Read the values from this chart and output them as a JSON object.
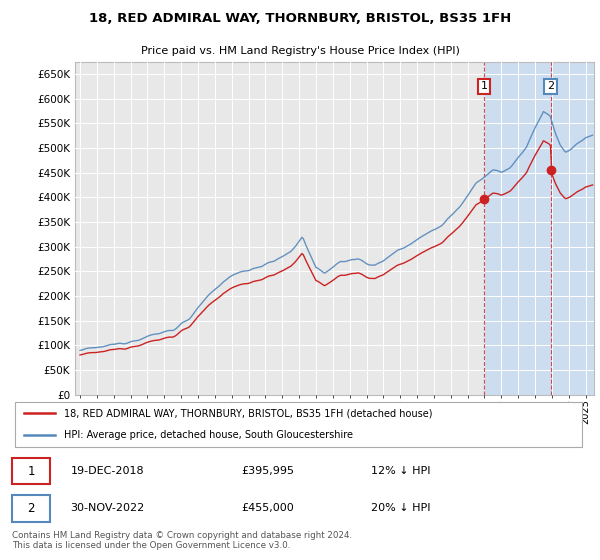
{
  "title": "18, RED ADMIRAL WAY, THORNBURY, BRISTOL, BS35 1FH",
  "subtitle": "Price paid vs. HM Land Registry's House Price Index (HPI)",
  "ytick_values": [
    0,
    50000,
    100000,
    150000,
    200000,
    250000,
    300000,
    350000,
    400000,
    450000,
    500000,
    550000,
    600000,
    650000
  ],
  "ylim": [
    0,
    675000
  ],
  "hpi_color": "#5588bb",
  "price_color": "#cc2222",
  "marker1_color": "#cc2222",
  "marker2_color": "#5588bb",
  "legend_label1": "18, RED ADMIRAL WAY, THORNBURY, BRISTOL, BS35 1FH (detached house)",
  "legend_label2": "HPI: Average price, detached house, South Gloucestershire",
  "annotation1_date": "19-DEC-2018",
  "annotation1_price": "£395,995",
  "annotation1_pct": "12% ↓ HPI",
  "annotation2_date": "30-NOV-2022",
  "annotation2_price": "£455,000",
  "annotation2_pct": "20% ↓ HPI",
  "footer": "Contains HM Land Registry data © Crown copyright and database right 2024.\nThis data is licensed under the Open Government Licence v3.0.",
  "plot_bg_color": "#e8e8e8",
  "grid_color": "#ffffff",
  "shade_color": "#ccddf0",
  "purchase1_year": 2018.97,
  "purchase2_year": 2022.92,
  "purchase1_price": 395995,
  "purchase2_price": 455000
}
